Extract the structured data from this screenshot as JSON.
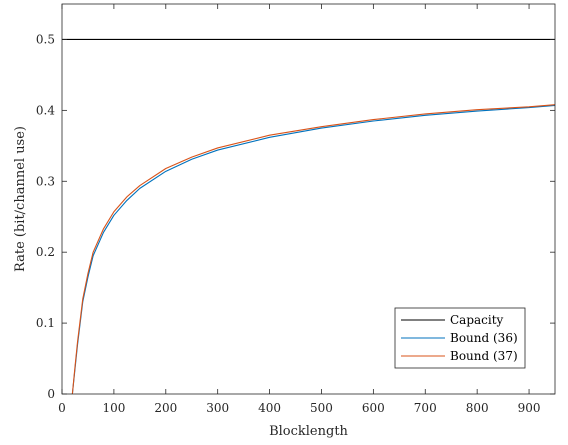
{
  "chart_data": {
    "type": "line",
    "xlabel": "Blocklength",
    "ylabel": "Rate (bit/channel use)",
    "xlim": [
      0,
      950
    ],
    "ylim": [
      0,
      0.55
    ],
    "xticks": [
      0,
      100,
      200,
      300,
      400,
      500,
      600,
      700,
      800,
      900
    ],
    "yticks": [
      0,
      0.1,
      0.2,
      0.3,
      0.4,
      0.5
    ],
    "xtick_labels": [
      "0",
      "100",
      "200",
      "300",
      "400",
      "500",
      "600",
      "700",
      "800",
      "900"
    ],
    "ytick_labels": [
      "0",
      "0.1",
      "0.2",
      "0.3",
      "0.4",
      "0.5"
    ],
    "grid": false,
    "legend_position": "bottom-right",
    "series": [
      {
        "name": "Capacity",
        "color": "#000000",
        "x": [
          0,
          950
        ],
        "y": [
          0.5,
          0.5
        ]
      },
      {
        "name": "Bound (36)",
        "color": "#0072BD",
        "x": [
          20,
          25,
          30,
          40,
          50,
          60,
          80,
          100,
          125,
          150,
          200,
          250,
          300,
          400,
          500,
          600,
          700,
          800,
          900,
          950
        ],
        "y": [
          0.0,
          0.035,
          0.07,
          0.13,
          0.165,
          0.195,
          0.228,
          0.252,
          0.273,
          0.29,
          0.314,
          0.331,
          0.344,
          0.362,
          0.375,
          0.385,
          0.393,
          0.399,
          0.404,
          0.407
        ]
      },
      {
        "name": "Bound (37)",
        "color": "#D95319",
        "x": [
          20,
          25,
          30,
          40,
          50,
          60,
          80,
          100,
          125,
          150,
          200,
          250,
          300,
          400,
          500,
          600,
          700,
          800,
          900,
          950
        ],
        "y": [
          0.0,
          0.038,
          0.074,
          0.134,
          0.17,
          0.2,
          0.233,
          0.257,
          0.278,
          0.294,
          0.318,
          0.334,
          0.347,
          0.365,
          0.377,
          0.387,
          0.395,
          0.401,
          0.405,
          0.408
        ]
      }
    ]
  }
}
